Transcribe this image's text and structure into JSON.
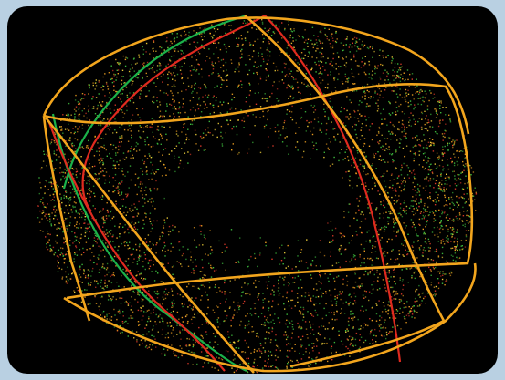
{
  "image": {
    "subject": "torus-point-cloud-with-curves",
    "colors": {
      "frame": "#b9d0e2",
      "panel": "#000000",
      "dot_green": "#3fbf3f",
      "dot_orange": "#f0a020",
      "dot_red": "#e03a2a",
      "dot_yellow": "#f2d23a",
      "curve_orange": "#f2a51d",
      "curve_red": "#e02a1f",
      "curve_green": "#1bb14a"
    }
  }
}
